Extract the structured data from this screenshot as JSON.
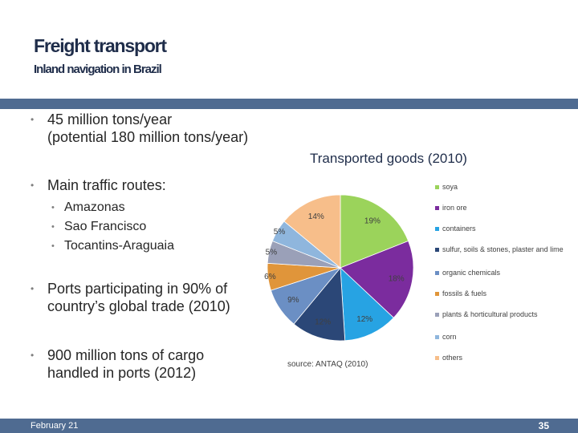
{
  "slide": {
    "title": "Freight transport",
    "subtitle": "Inland navigation in Brazil",
    "footer_date": "February 21",
    "page_number": "35"
  },
  "bullets": [
    {
      "level": 1,
      "lines": [
        "45 million tons/year",
        "(potential 180 million tons/year)"
      ]
    },
    {
      "level": 1,
      "lines": [
        "Main traffic routes:"
      ]
    },
    {
      "level": 2,
      "lines": [
        "Amazonas"
      ]
    },
    {
      "level": 2,
      "lines": [
        "Sao Francisco"
      ]
    },
    {
      "level": 2,
      "lines": [
        "Tocantins-Araguaia"
      ]
    },
    {
      "level": 1,
      "lines": [
        "Ports participating in 90% of",
        "country’s global trade (2010)"
      ]
    },
    {
      "level": 1,
      "lines": [
        "900 million tons of cargo",
        "handled in ports (2012)"
      ]
    }
  ],
  "chart_data": {
    "type": "pie",
    "title": "Transported goods (2010)",
    "source": "source: ANTAQ (2010)",
    "legend_position": "right",
    "categories": [
      "soya",
      "iron ore",
      "containers",
      "sulfur, soils & stones, plaster and lime",
      "organic chemicals",
      "fossils & fuels",
      "plants & horticultural products",
      "corn",
      "others"
    ],
    "values": [
      19,
      18,
      12,
      12,
      9,
      6,
      5,
      5,
      14
    ],
    "data_labels": [
      "19%",
      "18%",
      "12%",
      "12%",
      "9%",
      "6%",
      "5%",
      "5%",
      "14%"
    ],
    "colors": [
      "#9bd35b",
      "#7b2c9e",
      "#27a3e3",
      "#2b4777",
      "#6b8fc4",
      "#e0953a",
      "#9aa0b8",
      "#8fb6dd",
      "#f7be8a"
    ]
  }
}
